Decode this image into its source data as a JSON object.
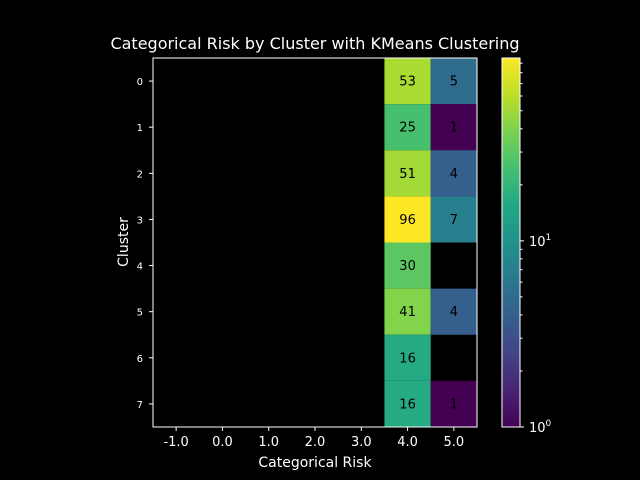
{
  "chart_data": {
    "type": "heatmap",
    "title": "Categorical Risk by Cluster with KMeans Clustering",
    "xlabel": "Categorical Risk",
    "ylabel": "Cluster",
    "x_ticks": [
      "-1.0",
      "0.0",
      "1.0",
      "2.0",
      "3.0",
      "4.0",
      "5.0"
    ],
    "y_ticks": [
      "0",
      "1",
      "2",
      "3",
      "4",
      "5",
      "6",
      "7"
    ],
    "values": [
      [
        null,
        null,
        null,
        null,
        null,
        53,
        5
      ],
      [
        null,
        null,
        null,
        null,
        null,
        25,
        1
      ],
      [
        null,
        null,
        null,
        null,
        null,
        51,
        4
      ],
      [
        null,
        null,
        null,
        null,
        null,
        96,
        7
      ],
      [
        null,
        null,
        null,
        null,
        null,
        30,
        null
      ],
      [
        null,
        null,
        null,
        null,
        null,
        41,
        4
      ],
      [
        null,
        null,
        null,
        null,
        null,
        16,
        null
      ],
      [
        null,
        null,
        null,
        null,
        null,
        16,
        1
      ]
    ],
    "colormap": "viridis",
    "color_scale": "log",
    "colorbar": {
      "min": 1,
      "max": 96,
      "tick_labels": [
        {
          "value": 1,
          "base": "10",
          "exp": "0"
        },
        {
          "value": 10,
          "base": "10",
          "exp": "1"
        }
      ]
    },
    "colors": {
      "background": "#000000",
      "foreground": "#ffffff",
      "cell_text": "#000000"
    }
  }
}
